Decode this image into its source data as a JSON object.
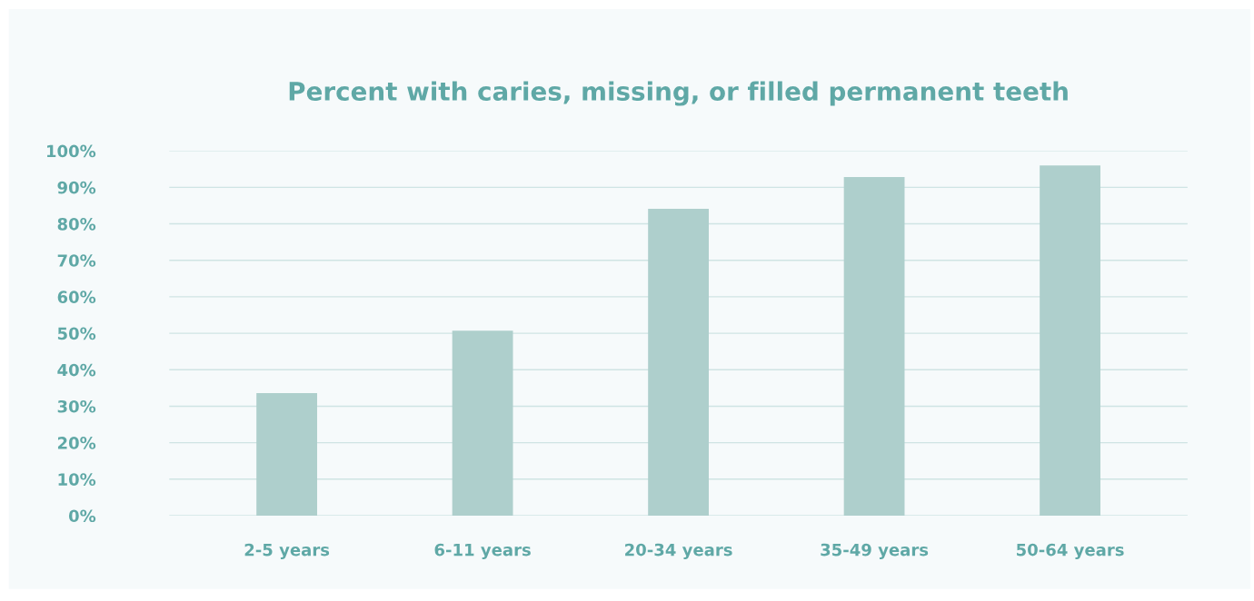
{
  "chart_data": {
    "type": "bar",
    "title": "Percent with caries, missing, or filled permanent teeth",
    "categories": [
      "2-5 years",
      "6-11 years",
      "20-34 years",
      "35-49 years",
      "50-64 years"
    ],
    "values": [
      33.6,
      50.7,
      84.1,
      92.8,
      96
    ],
    "color": "#aecfcc",
    "ylim": [
      0,
      100
    ],
    "yticks": [
      {
        "value": 0,
        "label": "0%"
      },
      {
        "value": 10,
        "label": "10%"
      },
      {
        "value": 20,
        "label": "20%"
      },
      {
        "value": 30,
        "label": "30%"
      },
      {
        "value": 40,
        "label": "40%"
      },
      {
        "value": 50,
        "label": "50%"
      },
      {
        "value": 60,
        "label": "60%"
      },
      {
        "value": 70,
        "label": "70%"
      },
      {
        "value": 80,
        "label": "80%"
      },
      {
        "value": 90,
        "label": "90%"
      },
      {
        "value": 100,
        "label": "100%"
      }
    ],
    "grid": "y",
    "legend": false
  }
}
